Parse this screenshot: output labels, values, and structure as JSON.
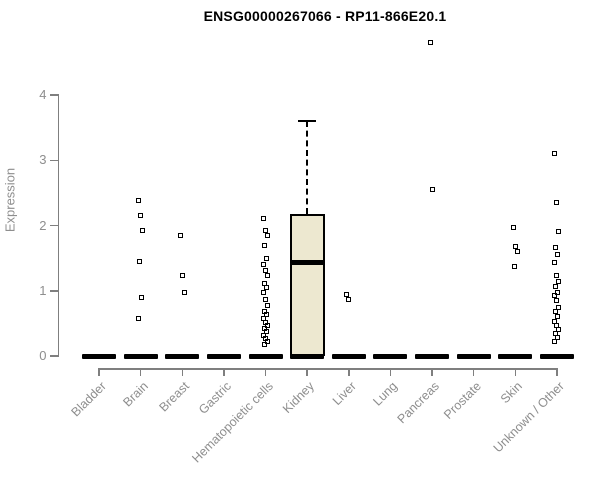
{
  "chart_data": {
    "type": "boxplot",
    "title": "ENSG00000267066 - RP11-866E20.1",
    "ylabel": "Expression",
    "ylim": [
      0,
      4
    ],
    "yticks": [
      0,
      1,
      2,
      3,
      4
    ],
    "grid": false,
    "legend": null,
    "categories": [
      "Bladder",
      "Brain",
      "Breast",
      "Gastric",
      "Hematopoietic cells",
      "Kidney",
      "Liver",
      "Lung",
      "Pancreas",
      "Prostate",
      "Skin",
      "Unknown / Other"
    ],
    "boxes": [
      {
        "category": "Kidney",
        "q1": 0,
        "median": 1.44,
        "q3": 2.18,
        "whisker_low": 0,
        "whisker_high": 3.6
      }
    ],
    "zero_bars": [
      "Bladder",
      "Brain",
      "Breast",
      "Gastric",
      "Hematopoietic cells",
      "Kidney",
      "Liver",
      "Lung",
      "Pancreas",
      "Prostate",
      "Skin",
      "Unknown / Other"
    ],
    "points": {
      "Bladder": [],
      "Brain": [
        2.38,
        2.16,
        1.93,
        1.45,
        0.9,
        0.57
      ],
      "Breast": [
        1.85,
        1.24,
        0.98
      ],
      "Gastric": [],
      "Hematopoietic cells": [
        2.11,
        1.93,
        1.85,
        1.7,
        1.5,
        1.4,
        1.31,
        1.24,
        1.11,
        1.05,
        0.98,
        0.86,
        0.77,
        0.68,
        0.63,
        0.57,
        0.52,
        0.47,
        0.42,
        0.37,
        0.32,
        0.27,
        0.22,
        0.17
      ],
      "Kidney": [],
      "Liver": [
        0.95,
        0.87
      ],
      "Lung": [],
      "Pancreas": [
        4.8,
        2.55
      ],
      "Prostate": [],
      "Skin": [
        1.97,
        1.68,
        1.6,
        1.37
      ],
      "Unknown / Other": [
        3.11,
        2.36,
        1.91,
        1.66,
        1.56,
        1.44,
        1.24,
        1.14,
        1.06,
        0.98,
        0.92,
        0.85,
        0.75,
        0.68,
        0.6,
        0.53,
        0.47,
        0.4,
        0.34,
        0.28,
        0.22
      ]
    },
    "colors": {
      "axis": "#7f7f7f",
      "tick_label": "#8e8e8e",
      "title": "#000000",
      "point": "#000000",
      "box_fill": "#ede8d0",
      "box_border": "#000000"
    }
  }
}
